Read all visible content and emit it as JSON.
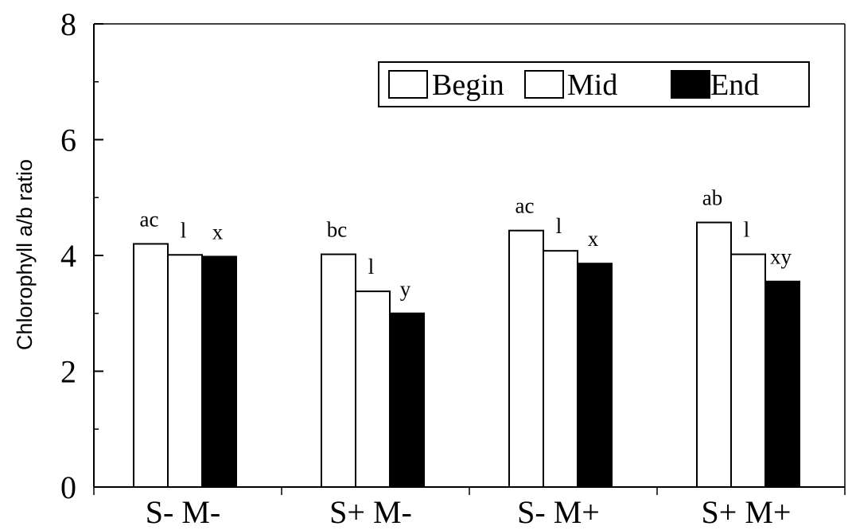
{
  "chart_data": {
    "type": "bar",
    "title": "",
    "xlabel": "",
    "ylabel": "Chlorophyll a/b ratio",
    "ylim": [
      0,
      8
    ],
    "yticks": [
      0,
      2,
      4,
      6,
      8
    ],
    "grid": false,
    "legend_position": "top-right",
    "categories": [
      "S- M-",
      "S+ M-",
      "S- M+",
      "S+ M+"
    ],
    "series": [
      {
        "name": "Begin",
        "color": "#ffffff",
        "values": [
          4.2,
          4.02,
          4.43,
          4.57
        ],
        "labels": [
          "ac",
          "bc",
          "ac",
          "ab"
        ]
      },
      {
        "name": "Mid",
        "color": "#ffffff",
        "values": [
          4.01,
          3.38,
          4.08,
          4.02
        ],
        "labels": [
          "l",
          "l",
          "l",
          "l"
        ]
      },
      {
        "name": "End",
        "color": "#000000",
        "values": [
          3.98,
          3.0,
          3.86,
          3.55
        ],
        "labels": [
          "x",
          "y",
          "x",
          "xy"
        ]
      }
    ]
  }
}
